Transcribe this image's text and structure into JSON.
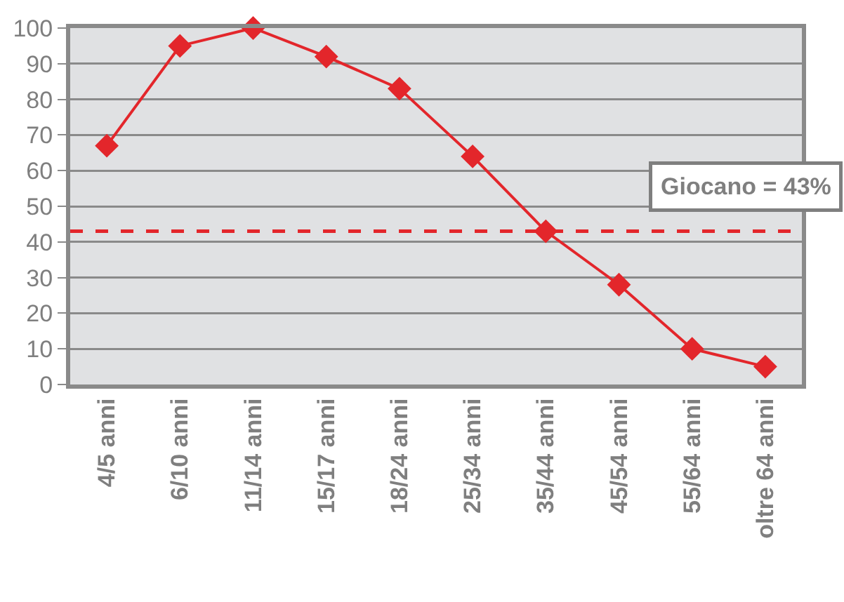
{
  "chart_data": {
    "type": "line",
    "categories": [
      "4/5 anni",
      "6/10 anni",
      "11/14 anni",
      "15/17 anni",
      "18/24 anni",
      "25/34 anni",
      "35/44 anni",
      "45/54 anni",
      "55/64 anni",
      "oltre 64 anni"
    ],
    "series": [
      {
        "color": "#e3262b",
        "values": [
          67,
          95,
          100,
          92,
          83,
          64,
          43,
          28,
          10,
          5
        ]
      }
    ],
    "ylim": [
      0,
      100
    ],
    "yticks": [
      0,
      10,
      20,
      30,
      40,
      50,
      60,
      70,
      80,
      90,
      100
    ],
    "ref_lines": [
      {
        "axis": "y",
        "value": 43,
        "label": "Giocano = 43%",
        "color": "#e3262b",
        "line_style": "dashed"
      }
    ],
    "grid": "y",
    "marker": "diamond",
    "line_style": "solid"
  }
}
